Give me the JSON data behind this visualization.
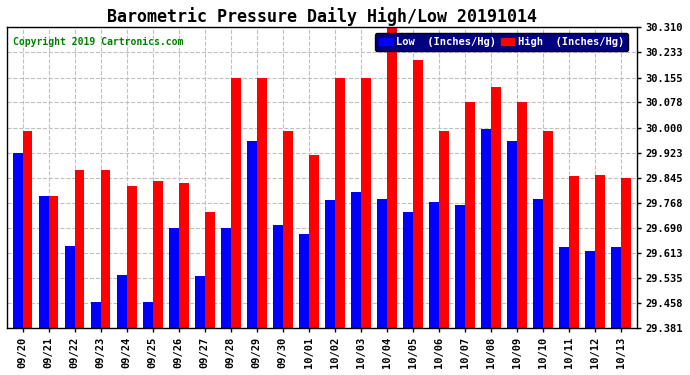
{
  "title": "Barometric Pressure Daily High/Low 20191014",
  "copyright": "Copyright 2019 Cartronics.com",
  "categories": [
    "09/20",
    "09/21",
    "09/22",
    "09/23",
    "09/24",
    "09/25",
    "09/26",
    "09/27",
    "09/28",
    "09/29",
    "09/30",
    "10/01",
    "10/02",
    "10/03",
    "10/04",
    "10/05",
    "10/06",
    "10/07",
    "10/08",
    "10/09",
    "10/10",
    "10/11",
    "10/12",
    "10/13"
  ],
  "low_values": [
    29.921,
    29.79,
    29.635,
    29.461,
    29.543,
    29.461,
    29.69,
    29.54,
    29.69,
    29.96,
    29.7,
    29.67,
    29.775,
    29.8,
    29.78,
    29.74,
    29.77,
    29.76,
    29.997,
    29.96,
    29.78,
    29.63,
    29.62,
    29.63
  ],
  "high_values": [
    29.99,
    29.79,
    29.87,
    29.87,
    29.82,
    29.835,
    29.83,
    29.74,
    30.155,
    30.155,
    29.99,
    29.915,
    30.155,
    30.155,
    30.31,
    30.21,
    29.99,
    30.08,
    30.125,
    30.078,
    29.99,
    29.85,
    29.855,
    29.845
  ],
  "low_color": "#0000ff",
  "high_color": "#ff0000",
  "bg_color": "#ffffff",
  "grid_color": "#c0c0c0",
  "yticks": [
    29.381,
    29.458,
    29.535,
    29.613,
    29.69,
    29.768,
    29.845,
    29.923,
    30.0,
    30.078,
    30.155,
    30.233,
    30.31
  ],
  "ylim_min": 29.381,
  "ylim_max": 30.31,
  "title_fontsize": 12,
  "copyright_fontsize": 7,
  "legend_low_label": "Low  (Inches/Hg)",
  "legend_high_label": "High  (Inches/Hg)"
}
